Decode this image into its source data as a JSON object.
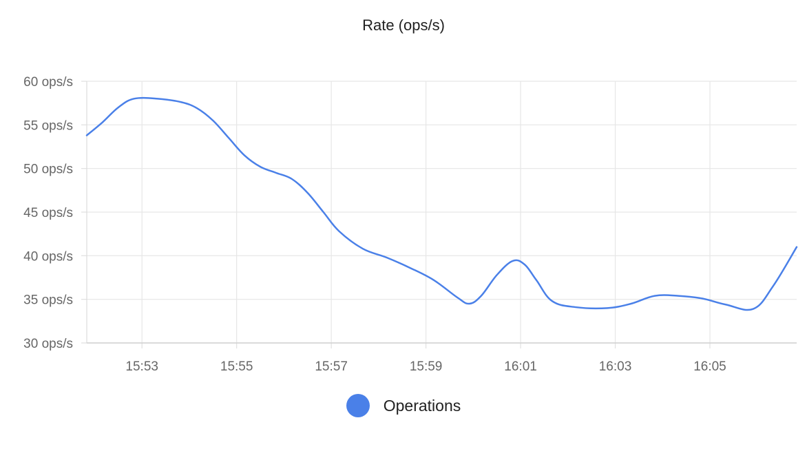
{
  "chart_data": {
    "type": "line",
    "title": "Rate (ops/s)",
    "xlabel": "",
    "ylabel": "",
    "y_unit_suffix": " ops/s",
    "ylim": [
      30,
      60
    ],
    "y_ticks": [
      30,
      35,
      40,
      45,
      50,
      55,
      60
    ],
    "x_range": [
      "15:51:50",
      "16:06:50"
    ],
    "x_ticks": [
      "15:53",
      "15:55",
      "15:57",
      "15:59",
      "16:01",
      "16:03",
      "16:05"
    ],
    "grid": true,
    "legend_position": "bottom-center",
    "series": [
      {
        "name": "Operations",
        "color": "#4a80e8",
        "x": [
          "15:51:50",
          "15:52:10",
          "15:52:30",
          "15:52:50",
          "15:53:20",
          "15:53:50",
          "15:54:10",
          "15:54:30",
          "15:54:50",
          "15:55:10",
          "15:55:30",
          "15:55:50",
          "15:56:10",
          "15:56:30",
          "15:56:50",
          "15:57:10",
          "15:57:40",
          "15:58:10",
          "15:58:40",
          "15:59:10",
          "15:59:40",
          "15:59:55",
          "16:00:10",
          "16:00:30",
          "16:00:50",
          "16:01:05",
          "16:01:20",
          "16:01:40",
          "16:02:10",
          "16:02:50",
          "16:03:20",
          "16:03:50",
          "16:04:20",
          "16:04:50",
          "16:05:20",
          "16:05:55",
          "16:06:20",
          "16:06:50"
        ],
        "values": [
          53.8,
          55.3,
          57.0,
          58.0,
          58.0,
          57.6,
          56.9,
          55.5,
          53.5,
          51.5,
          50.2,
          49.5,
          48.8,
          47.2,
          45.0,
          42.8,
          40.8,
          39.8,
          38.6,
          37.2,
          35.2,
          34.5,
          35.4,
          37.8,
          39.4,
          39.0,
          37.2,
          34.8,
          34.1,
          34.0,
          34.5,
          35.4,
          35.4,
          35.1,
          34.4,
          33.9,
          36.5,
          41.0
        ]
      }
    ]
  }
}
